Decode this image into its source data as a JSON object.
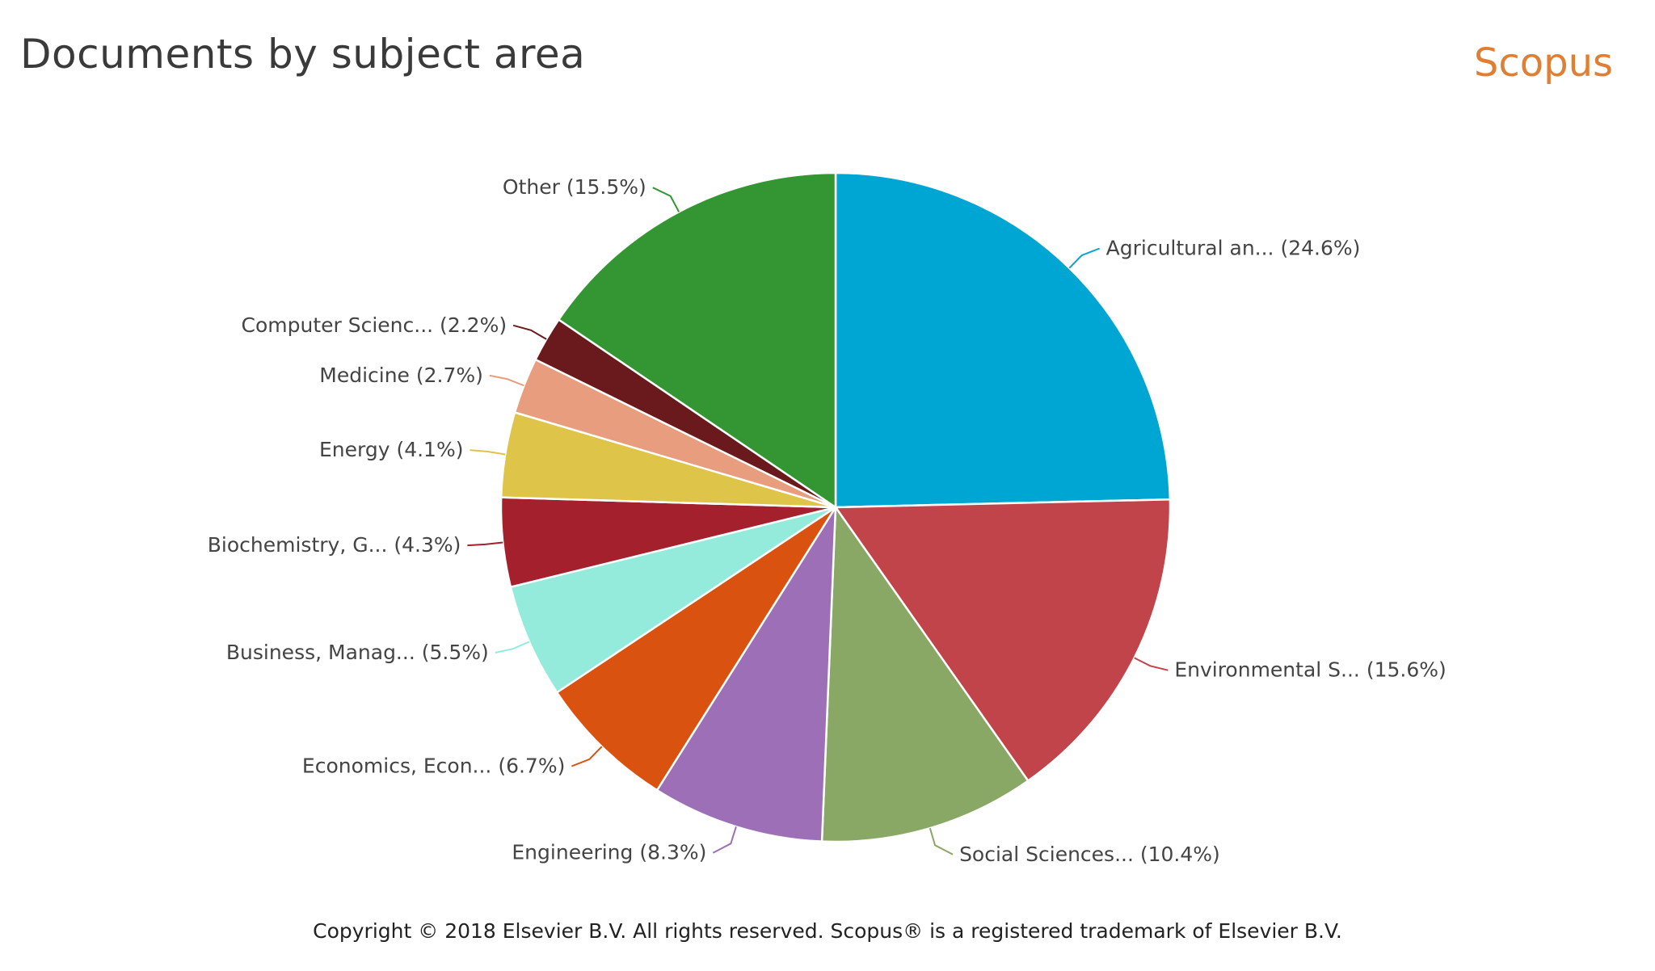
{
  "header": {
    "title": "Documents by subject area",
    "brand": "Scopus"
  },
  "footer": {
    "copyright": "Copyright © 2018 Elsevier B.V. All rights reserved. Scopus® is a registered trademark of Elsevier B.V."
  },
  "chart_data": {
    "type": "pie",
    "title": "Documents by subject area",
    "categories": [
      "Agricultural an...",
      "Environmental S...",
      "Social Sciences...",
      "Engineering",
      "Economics, Econ...",
      "Business, Manag...",
      "Biochemistry, G...",
      "Energy",
      "Medicine",
      "Computer Scienc...",
      "Other"
    ],
    "values": [
      24.6,
      15.6,
      10.4,
      8.3,
      6.7,
      5.5,
      4.3,
      4.1,
      2.7,
      2.2,
      15.5
    ],
    "labels": [
      "Agricultural an... (24.6%)",
      "Environmental S... (15.6%)",
      "Social Sciences... (10.4%)",
      "Engineering (8.3%)",
      "Economics, Econ... (6.7%)",
      "Business, Manag... (5.5%)",
      "Biochemistry, G... (4.3%)",
      "Energy (4.1%)",
      "Medicine (2.7%)",
      "Computer Scienc... (2.2%)",
      "Other (15.5%)"
    ],
    "colors": [
      "#00a6d3",
      "#c0444a",
      "#8aa865",
      "#9c6fb6",
      "#d9520f",
      "#94ebdb",
      "#a3202c",
      "#dec448",
      "#e89d7e",
      "#6a1a1c",
      "#339632"
    ],
    "start": "12 o'clock",
    "direction": "clockwise",
    "legend": "none"
  }
}
